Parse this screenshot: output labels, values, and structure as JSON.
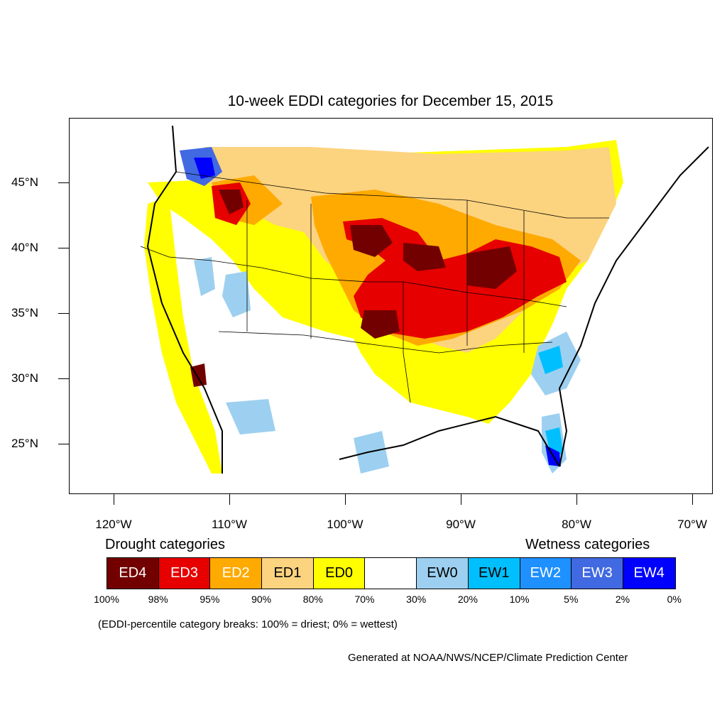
{
  "title": "10-week EDDI categories for December 15, 2015",
  "axes": {
    "lat_labels": [
      "45°N",
      "40°N",
      "35°N",
      "30°N",
      "25°N"
    ],
    "lon_labels": [
      "120°W",
      "110°W",
      "100°W",
      "90°W",
      "80°W",
      "70°W"
    ]
  },
  "legend": {
    "drought_heading": "Drought categories",
    "wetness_heading": "Wetness categories",
    "categories": [
      {
        "label": "ED4",
        "color": "#730000",
        "text_color": "#ffffff"
      },
      {
        "label": "ED3",
        "color": "#e60000",
        "text_color": "#ffffff"
      },
      {
        "label": "ED2",
        "color": "#ffaa00",
        "text_color": "#ffffff"
      },
      {
        "label": "ED1",
        "color": "#fcd37f",
        "text_color": "#000000"
      },
      {
        "label": "ED0",
        "color": "#ffff00",
        "text_color": "#000000"
      },
      {
        "label": "",
        "color": "#ffffff",
        "text_color": "#000000"
      },
      {
        "label": "EW0",
        "color": "#9dd0f0",
        "text_color": "#000000"
      },
      {
        "label": "EW1",
        "color": "#00bfff",
        "text_color": "#000000"
      },
      {
        "label": "EW2",
        "color": "#1e90ff",
        "text_color": "#ffffff"
      },
      {
        "label": "EW3",
        "color": "#4169e1",
        "text_color": "#ffffff"
      },
      {
        "label": "EW4",
        "color": "#0000ff",
        "text_color": "#ffffff"
      }
    ],
    "percentiles": [
      "100%",
      "98%",
      "95%",
      "90%",
      "80%",
      "70%",
      "30%",
      "20%",
      "10%",
      "5%",
      "2%",
      "0%"
    ]
  },
  "note": "(EDDI-percentile category breaks: 100% = driest; 0% = wettest)",
  "credit": "Generated at NOAA/NWS/NCEP/Climate Prediction Center"
}
